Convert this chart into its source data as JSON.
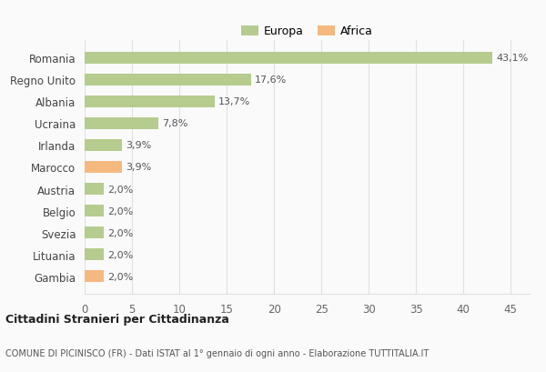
{
  "categories": [
    "Romania",
    "Regno Unito",
    "Albania",
    "Ucraina",
    "Irlanda",
    "Marocco",
    "Austria",
    "Belgio",
    "Svezia",
    "Lituania",
    "Gambia"
  ],
  "values": [
    43.1,
    17.6,
    13.7,
    7.8,
    3.9,
    3.9,
    2.0,
    2.0,
    2.0,
    2.0,
    2.0
  ],
  "labels": [
    "43,1%",
    "17,6%",
    "13,7%",
    "7,8%",
    "3,9%",
    "3,9%",
    "2,0%",
    "2,0%",
    "2,0%",
    "2,0%",
    "2,0%"
  ],
  "colors": [
    "#b5cc8e",
    "#b5cc8e",
    "#b5cc8e",
    "#b5cc8e",
    "#b5cc8e",
    "#f5b97f",
    "#b5cc8e",
    "#b5cc8e",
    "#b5cc8e",
    "#b5cc8e",
    "#f5b97f"
  ],
  "europa_color": "#b5cc8e",
  "africa_color": "#f5b97f",
  "title": "Cittadini Stranieri per Cittadinanza",
  "subtitle": "COMUNE DI PICINISCO (FR) - Dati ISTAT al 1° gennaio di ogni anno - Elaborazione TUTTITALIA.IT",
  "xlim": [
    0,
    47
  ],
  "xticks": [
    0,
    5,
    10,
    15,
    20,
    25,
    30,
    35,
    40,
    45
  ],
  "background_color": "#fafafa",
  "grid_color": "#e0e0e0"
}
